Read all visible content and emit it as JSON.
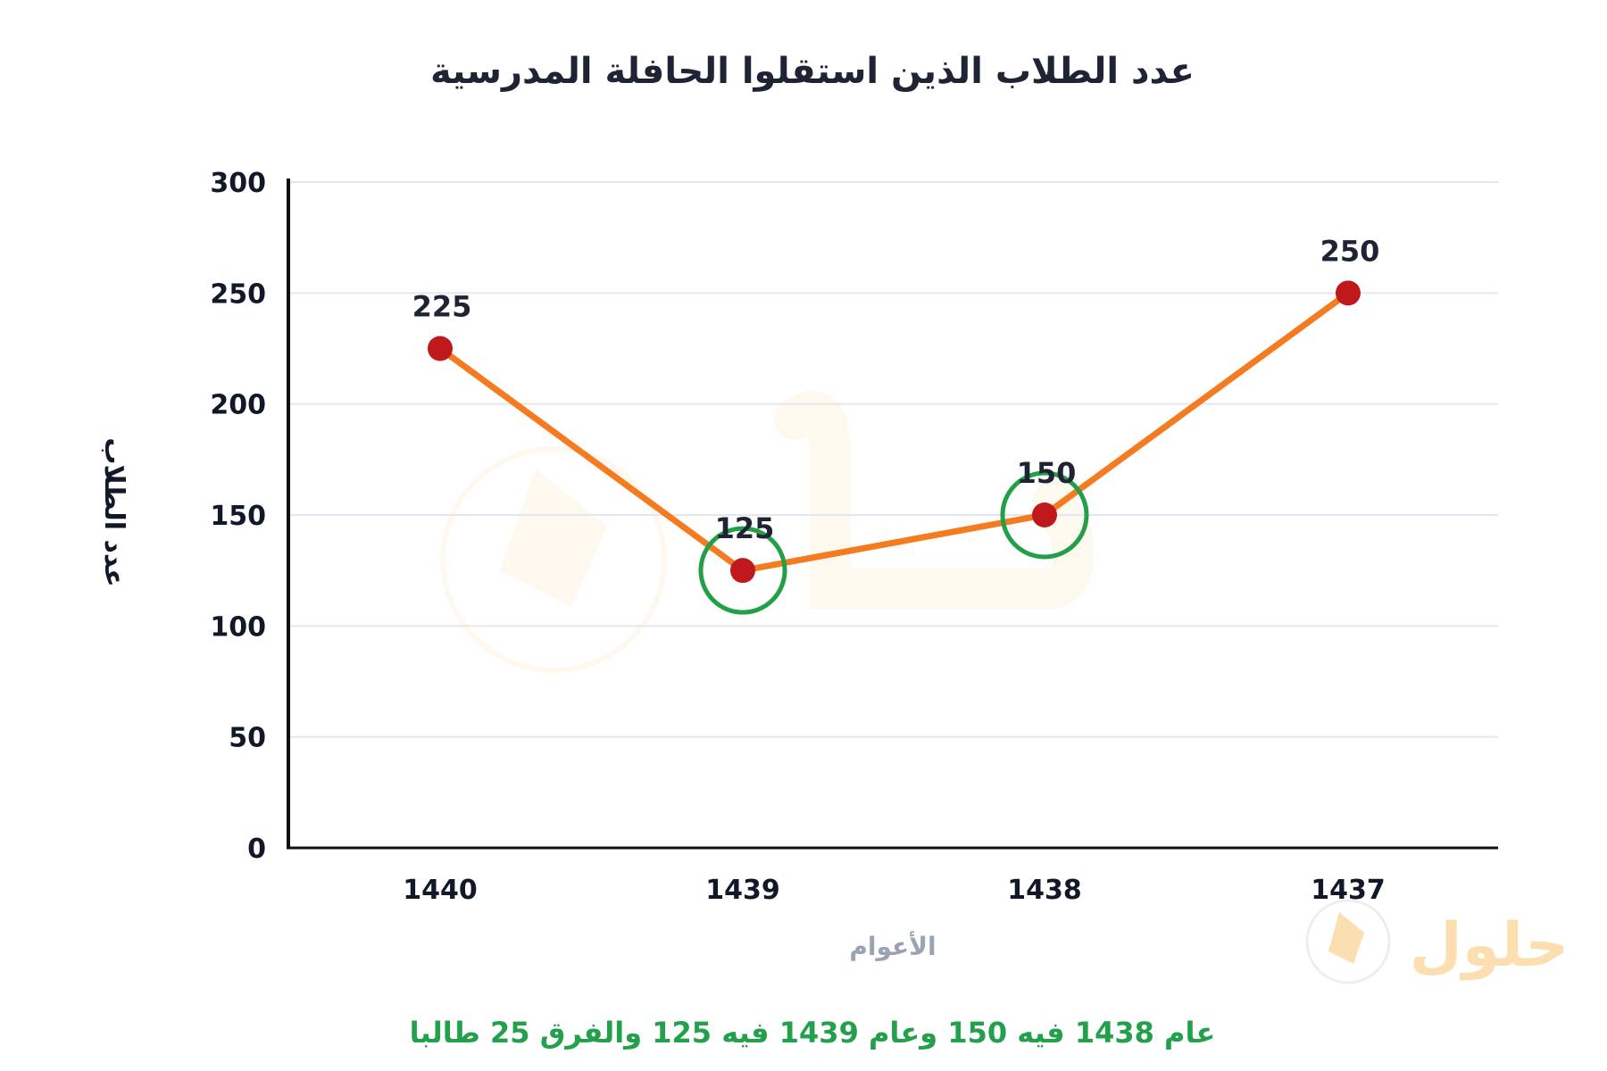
{
  "chart_data": {
    "type": "line",
    "title": "عدد الطلاب الذين استقلوا الحافلة المدرسية",
    "xlabel": "الأعوام",
    "ylabel": "عدد الطلاب",
    "categories": [
      "1440",
      "1439",
      "1438",
      "1437"
    ],
    "values": [
      225,
      125,
      150,
      250
    ],
    "data_labels": [
      "225",
      "125",
      "150",
      "250"
    ],
    "highlighted_categories": [
      "1439",
      "1438"
    ],
    "ylim": [
      0,
      300
    ],
    "y_ticks": [
      "0",
      "50",
      "100",
      "150",
      "200",
      "250",
      "300"
    ],
    "grid": true,
    "legend": "none",
    "colors": {
      "line": "#f47b20",
      "point": "#c0191c",
      "highlight_ring": "#23a047",
      "note": "#22a04b"
    }
  },
  "note": "عام 1438 فيه 150 وعام 1439 فيه 125 والفرق 25 طالبا",
  "watermark": {
    "text": "حلول",
    "color": "#f5a623"
  }
}
